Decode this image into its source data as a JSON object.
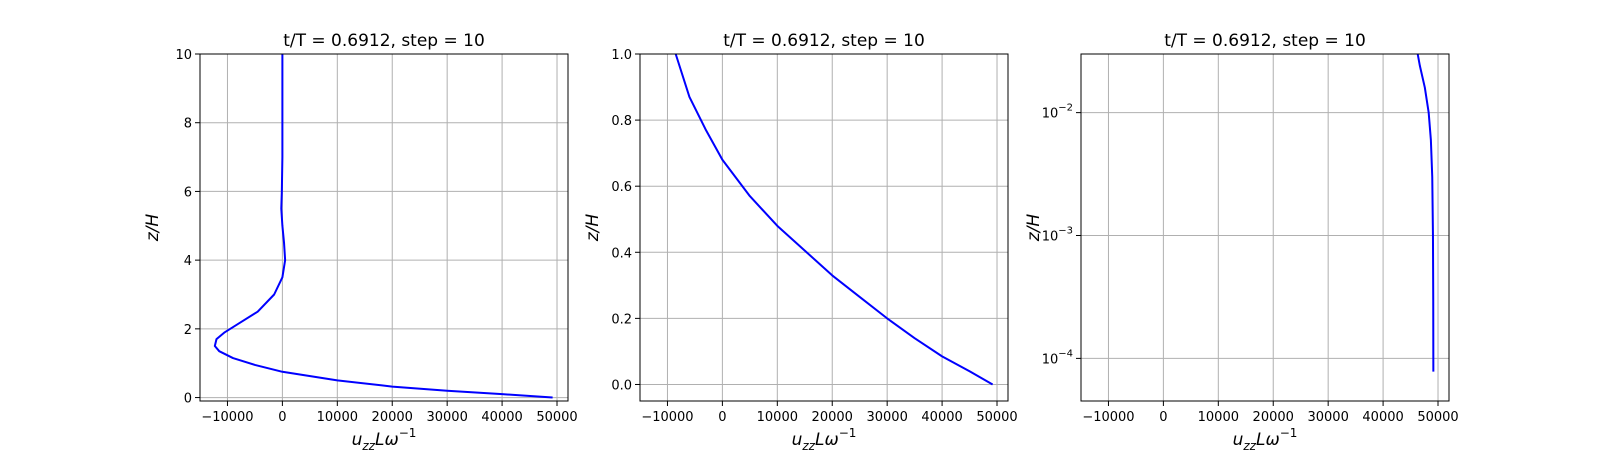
{
  "chart_data": [
    {
      "type": "line",
      "title": "t/T = 0.6912, step = 10",
      "xlabel": "u_zz L ω^-1",
      "ylabel": "z/H",
      "xlim": [
        -15000,
        52000
      ],
      "ylim": [
        -0.1,
        10
      ],
      "yscale": "linear",
      "grid": true,
      "xticks": [
        -10000,
        0,
        10000,
        20000,
        30000,
        40000,
        50000
      ],
      "xtick_labels": [
        "−10000",
        "0",
        "10000",
        "20000",
        "30000",
        "40000",
        "50000"
      ],
      "yticks": [
        0,
        2,
        4,
        6,
        8,
        10
      ],
      "ytick_labels": [
        "0",
        "2",
        "4",
        "6",
        "8",
        "10"
      ],
      "series": [
        {
          "color": "#0000ff",
          "x": [
            49200,
            40000,
            30000,
            20000,
            10000,
            0,
            -5000,
            -9000,
            -11500,
            -12300,
            -12000,
            -10500,
            -8000,
            -4500,
            -1500,
            0,
            500,
            300,
            0,
            -200,
            -100,
            0,
            0,
            0,
            0
          ],
          "y": [
            0,
            0.1,
            0.2,
            0.32,
            0.5,
            0.75,
            0.95,
            1.15,
            1.35,
            1.5,
            1.7,
            1.9,
            2.15,
            2.5,
            3.0,
            3.5,
            4.0,
            4.5,
            5.0,
            5.5,
            6.0,
            7.0,
            8.0,
            9.0,
            10.0
          ]
        }
      ]
    },
    {
      "type": "line",
      "title": "t/T = 0.6912, step = 10",
      "xlabel": "u_zz L ω^-1",
      "ylabel": "z/H",
      "xlim": [
        -15000,
        52000
      ],
      "ylim": [
        -0.05,
        1.0
      ],
      "yscale": "linear",
      "grid": true,
      "xticks": [
        -10000,
        0,
        10000,
        20000,
        30000,
        40000,
        50000
      ],
      "xtick_labels": [
        "−10000",
        "0",
        "10000",
        "20000",
        "30000",
        "40000",
        "50000"
      ],
      "yticks": [
        0,
        0.2,
        0.4,
        0.6,
        0.8,
        1.0
      ],
      "ytick_labels": [
        "0.0",
        "0.2",
        "0.4",
        "0.6",
        "0.8",
        "1.0"
      ],
      "series": [
        {
          "color": "#0000ff",
          "x": [
            49200,
            45000,
            40000,
            35000,
            30000,
            25000,
            20000,
            15000,
            10000,
            5000,
            0,
            -3000,
            -6000,
            -8500
          ],
          "y": [
            0,
            0.04,
            0.085,
            0.14,
            0.2,
            0.265,
            0.33,
            0.405,
            0.48,
            0.57,
            0.68,
            0.77,
            0.87,
            1.0
          ]
        }
      ]
    },
    {
      "type": "line",
      "title": "t/T = 0.6912, step = 10",
      "xlabel": "u_zz L ω^-1",
      "ylabel": "z/H",
      "xlim": [
        -15000,
        52000
      ],
      "ylim": [
        4.5e-05,
        0.03
      ],
      "yscale": "log",
      "grid": true,
      "xticks": [
        -10000,
        0,
        10000,
        20000,
        30000,
        40000,
        50000
      ],
      "xtick_labels": [
        "−10000",
        "0",
        "10000",
        "20000",
        "30000",
        "40000",
        "50000"
      ],
      "yticks": [
        0.0001,
        0.001,
        0.01
      ],
      "ytick_labels": [
        "10",
        "10",
        "10"
      ],
      "ytick_exponents": [
        "−4",
        "−3",
        "−2"
      ],
      "series": [
        {
          "color": "#0000ff",
          "x": [
            49150,
            49130,
            49080,
            48950,
            48700,
            48300,
            47600,
            46700,
            46300
          ],
          "y": [
            7.8e-05,
            0.0003,
            0.001,
            0.003,
            0.006,
            0.01,
            0.016,
            0.024,
            0.03
          ]
        }
      ]
    }
  ]
}
